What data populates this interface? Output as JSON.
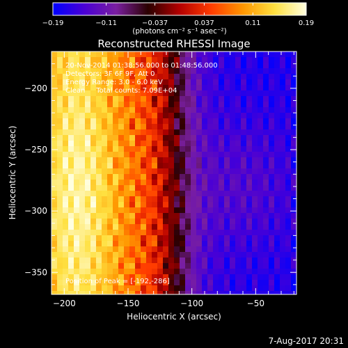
{
  "chart_data": {
    "type": "heatmap",
    "title": "Reconstructed RHESSI Image",
    "xlabel": "Heliocentric X (arcsec)",
    "ylabel": "Heliocentric Y (arcsec)",
    "xlim": [
      -210,
      -18
    ],
    "ylim": [
      -368,
      -170
    ],
    "x_ticks": [
      -200,
      -150,
      -100,
      -50
    ],
    "x_tick_labels": [
      "−200",
      "−150",
      "−100",
      "−50"
    ],
    "y_ticks": [
      -200,
      -250,
      -300,
      -350
    ],
    "y_tick_labels": [
      "−200",
      "−250",
      "−300",
      "−350"
    ],
    "colorbar": {
      "range": [
        -0.19,
        0.19
      ],
      "ticks": [
        -0.19,
        -0.11,
        -0.037,
        0.037,
        0.11,
        0.19
      ],
      "tick_labels": [
        "−0.19",
        "−0.11",
        "−0.037",
        "0.037",
        "0.11",
        "0.19"
      ],
      "unit_label": "(photons cm⁻² s⁻¹ asec⁻²)",
      "colormap": [
        "#0000ff",
        "#4b00d4",
        "#7a1fa0",
        "#2a0000",
        "#b40000",
        "#ff3c00",
        "#ff9600",
        "#ffe040",
        "#ffffe0"
      ]
    },
    "annotations": [
      "20-Nov-2014 01:38:56.000 to 01:48:56.000",
      "Detectors: 3F 6F 9F, Att 0",
      "Energy Range: 3.0 - 6.0 keV",
      "Clean     Total counts: 7.09E+04"
    ],
    "peak_label": "Position of Peak = [-192,-286]",
    "peak": [
      -192,
      -286
    ],
    "grid": false
  },
  "footer": {
    "date": "7-Aug-2017 20:31"
  }
}
